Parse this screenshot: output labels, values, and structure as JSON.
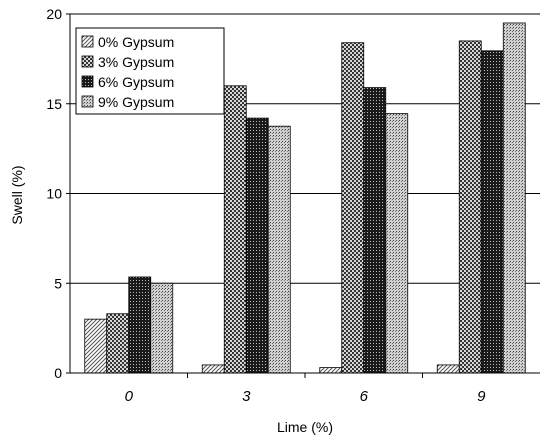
{
  "chart_data": {
    "type": "bar",
    "title": "",
    "xlabel": "Lime (%)",
    "ylabel": "Swell (%)",
    "categories": [
      "0",
      "3",
      "6",
      "9"
    ],
    "ylim": [
      0,
      20
    ],
    "yticks": [
      0,
      5,
      10,
      15,
      20
    ],
    "grid": true,
    "legend_position": "top-left",
    "series": [
      {
        "name": "0% Gypsum",
        "values": [
          3.0,
          0.45,
          0.3,
          0.45
        ],
        "pattern": "hatch-diagonal"
      },
      {
        "name": "3% Gypsum",
        "values": [
          3.3,
          16.0,
          18.4,
          18.5
        ],
        "pattern": "checker"
      },
      {
        "name": "6% Gypsum",
        "values": [
          5.35,
          14.2,
          15.9,
          17.95
        ],
        "pattern": "dark-dots"
      },
      {
        "name": "9% Gypsum",
        "values": [
          5.0,
          13.75,
          14.45,
          19.5
        ],
        "pattern": "light-dots"
      }
    ]
  }
}
